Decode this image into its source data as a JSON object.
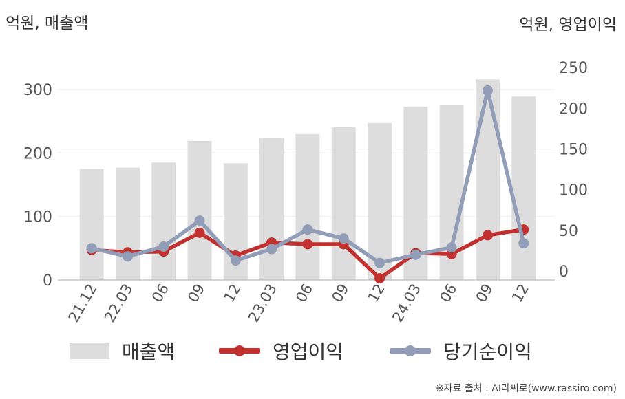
{
  "units": {
    "left": "억원, 매출액",
    "right": "억원, 영업이익"
  },
  "chart_data": {
    "type": "bar",
    "categories": [
      "21.12",
      "22.03",
      "06",
      "09",
      "12",
      "23.03",
      "06",
      "09",
      "12",
      "24.03",
      "06",
      "09",
      "12"
    ],
    "left_axis": {
      "ylim": [
        0,
        350
      ],
      "ticks": [
        0,
        100,
        200,
        300
      ]
    },
    "right_axis": {
      "ylim": [
        -11,
        262
      ],
      "ticks": [
        0,
        50,
        100,
        150,
        200,
        250
      ]
    },
    "series": [
      {
        "name": "매출액",
        "kind": "bar",
        "axis": "left",
        "color": "#dddddd",
        "values": [
          175,
          177,
          185,
          219,
          184,
          224,
          230,
          241,
          247,
          273,
          276,
          316,
          289
        ]
      },
      {
        "name": "영업이익",
        "kind": "line",
        "axis": "right",
        "color": "#c0312f",
        "values": [
          26,
          23,
          24,
          47,
          19,
          35,
          33,
          33,
          -9,
          22,
          21,
          44,
          51
        ]
      },
      {
        "name": "당기순이익",
        "kind": "line",
        "axis": "right",
        "color": "#929eb8",
        "values": [
          28,
          18,
          30,
          62,
          13,
          27,
          51,
          40,
          10,
          20,
          29,
          222,
          34
        ]
      }
    ]
  },
  "legend": {
    "revenue": "매출액",
    "operating_income": "영업이익",
    "net_income": "당기순이익"
  },
  "source": "※자료 출처 : AI라씨로(www.rassiro.com)"
}
